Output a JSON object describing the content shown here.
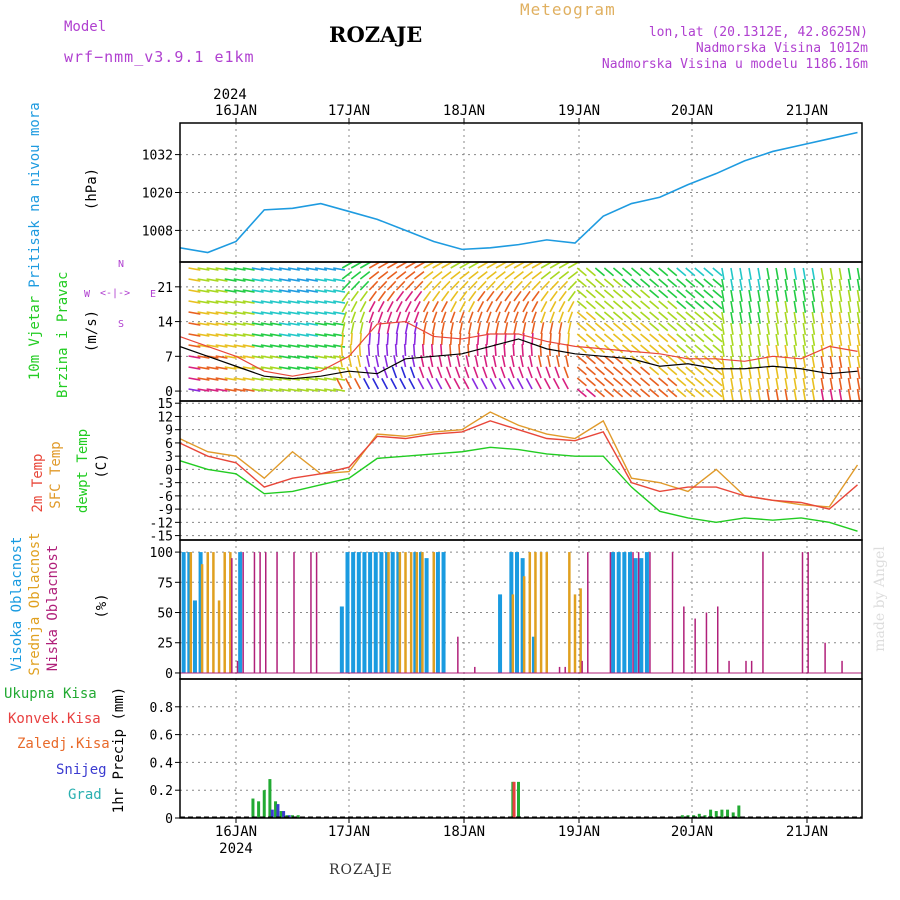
{
  "header": {
    "model_label": "Model",
    "model_name": "wrf−nmm_v3.9.1  e1km",
    "station": "ROZAJE",
    "product": "Meteogram",
    "lonlat": "lon,lat (20.1312E, 42.8625N)",
    "elevation": "Nadmorska Visina 1012m",
    "model_elevation": "Nadmorska Visina u modelu 1186.16m"
  },
  "footer": {
    "station": "ROZAJE",
    "credit": "made by Angel"
  },
  "colors": {
    "pressure": "#1e9be0",
    "temp2m": "#e8473a",
    "sfc": "#e09a2a",
    "dew": "#22cc22",
    "high_cloud": "#1a9be0",
    "mid_cloud": "#e0a020",
    "low_cloud": "#b0207a",
    "total_precip": "#22aa33",
    "conv_precip": "#e84040",
    "snow": "#3b3bd0"
  },
  "time_axis": {
    "year": "2024",
    "days": [
      "16JAN",
      "17JAN",
      "18JAN",
      "19JAN",
      "20JAN",
      "21JAN"
    ]
  },
  "chart_data": [
    {
      "type": "line",
      "panel": "pressure",
      "ylabel": "Pritisak na nivou mora",
      "unit": "(hPa)",
      "yticks": [
        1008,
        1020,
        1032
      ],
      "ylim": [
        998,
        1042
      ],
      "x_days": [
        0,
        0.25,
        0.5,
        0.75,
        1,
        1.25,
        1.5,
        1.75,
        2,
        2.25,
        2.5,
        2.75,
        3,
        3.25,
        3.5,
        3.75,
        4,
        4.25,
        4.5,
        4.75,
        5,
        5.25,
        5.5,
        5.75,
        6
      ],
      "series": [
        {
          "values": [
            1002.5,
            1001,
            1004.5,
            1014.5,
            1015,
            1016.5,
            1014,
            1011.5,
            1008,
            1004.5,
            1002,
            1002.5,
            1003.5,
            1005,
            1004,
            1012.5,
            1016.5,
            1018.5,
            1022.5,
            1026,
            1030,
            1033,
            1035,
            1037,
            1039
          ]
        }
      ]
    },
    {
      "type": "line",
      "panel": "wind",
      "ylabel": "10m Vjetar",
      "ylabel2": "Brzina i Pravac",
      "unit": "(m/s)",
      "compass": {
        "n": "N",
        "e": "E",
        "w": "W",
        "s": "S"
      },
      "yticks": [
        0,
        7,
        14,
        21
      ],
      "ylim": [
        -2,
        26
      ],
      "x_days": [
        0,
        0.25,
        0.5,
        0.75,
        1,
        1.25,
        1.5,
        1.75,
        2,
        2.25,
        2.5,
        2.75,
        3,
        3.25,
        3.5,
        3.75,
        4,
        4.25,
        4.5,
        4.75,
        5,
        5.25,
        5.5,
        5.75,
        6
      ],
      "series": [
        {
          "values": [
            9,
            7,
            5,
            3,
            2.5,
            3,
            4,
            3.5,
            6.5,
            7,
            7.5,
            9,
            10.5,
            8.5,
            7.5,
            7,
            6.5,
            5,
            5.5,
            4.5,
            4.5,
            5,
            4.5,
            3.5,
            4
          ]
        },
        {
          "values": [
            11,
            9,
            7,
            4,
            3,
            4,
            7,
            13.5,
            14,
            11,
            10.5,
            11.5,
            11.5,
            10,
            9,
            8.5,
            8,
            7.5,
            6.5,
            6.5,
            6,
            7,
            6.5,
            9,
            8
          ]
        }
      ]
    },
    {
      "type": "line",
      "panel": "temperature",
      "ylabel": "2m Temp",
      "ylabel2": "SFC Temp",
      "ylabel3": "dewpt Temp",
      "unit": "(C)",
      "yticks": [
        -15,
        -12,
        -9,
        -6,
        -3,
        0,
        3,
        6,
        9,
        12,
        15
      ],
      "ylim": [
        -16,
        15.5
      ],
      "x_days": [
        0,
        0.25,
        0.5,
        0.75,
        1,
        1.25,
        1.5,
        1.75,
        2,
        2.25,
        2.5,
        2.75,
        3,
        3.25,
        3.5,
        3.75,
        4,
        4.25,
        4.5,
        4.75,
        5,
        5.25,
        5.5,
        5.75,
        6
      ],
      "series": [
        {
          "name": "2m Temp",
          "values": [
            6,
            3,
            1.5,
            -4,
            -2,
            -1,
            0.5,
            7.5,
            7,
            8,
            8.5,
            11,
            9,
            7,
            6.5,
            8.5,
            -3,
            -5,
            -4,
            -4,
            -6,
            -7,
            -7.5,
            -9,
            -3.5
          ]
        },
        {
          "name": "SFC Temp",
          "values": [
            7,
            4,
            3,
            -2,
            4,
            -1,
            -0.5,
            8,
            7.5,
            8.5,
            9,
            13,
            10,
            8,
            7,
            11,
            -2,
            -3,
            -5,
            0,
            -6,
            -7,
            -8,
            -8.5,
            1
          ]
        },
        {
          "name": "dewpt Temp",
          "values": [
            2,
            0,
            -1,
            -5.5,
            -5,
            -3.5,
            -2,
            2.5,
            3,
            3.5,
            4,
            5,
            4.5,
            3.5,
            3,
            3,
            -4,
            -9.5,
            -11,
            -12,
            -11,
            -11.5,
            -11,
            -12,
            -14
          ]
        }
      ]
    },
    {
      "type": "bar",
      "panel": "clouds",
      "ylabel": "Visoka Oblacnost",
      "ylabel2": "Srednja Oblacnost",
      "ylabel3": "Niska Oblacnost",
      "unit": "(%)",
      "yticks": [
        0,
        25,
        50,
        75,
        100
      ],
      "ylim": [
        -5,
        110
      ],
      "series": [
        {
          "name": "Visoka Oblacnost",
          "x": [
            0.05,
            0.1,
            0.15,
            0.2,
            0.55,
            1.1,
            1.45,
            1.5,
            1.55,
            1.6,
            1.65,
            1.7,
            1.75,
            1.8,
            1.85,
            1.9,
            1.95,
            2.1,
            2.15,
            2.2,
            2.3,
            2.35,
            2.85,
            2.95,
            3.0,
            3.05,
            3.15,
            3.85,
            3.9,
            3.95,
            4.0,
            4.05,
            4.1,
            4.15
          ],
          "values": [
            100,
            100,
            60,
            100,
            100,
            0,
            55,
            100,
            100,
            100,
            100,
            100,
            100,
            100,
            100,
            100,
            100,
            100,
            100,
            95,
            100,
            100,
            65,
            100,
            100,
            95,
            30,
            100,
            100,
            100,
            100,
            95,
            95,
            100
          ]
        },
        {
          "name": "Srednja Oblacnost",
          "x": [
            0.1,
            0.2,
            0.25,
            0.3,
            0.35,
            0.4,
            0.45,
            1.85,
            1.95,
            2.0,
            2.05,
            2.1,
            2.15,
            2.25,
            2.95,
            3.05,
            3.1,
            3.15,
            3.2,
            3.25,
            3.45,
            3.5,
            3.55
          ],
          "values": [
            100,
            90,
            100,
            100,
            60,
            100,
            100,
            100,
            100,
            100,
            100,
            100,
            100,
            100,
            65,
            80,
            100,
            100,
            100,
            100,
            100,
            65,
            70
          ]
        },
        {
          "name": "Niska Oblacnost",
          "x": [
            0.45,
            0.5,
            0.55,
            0.65,
            0.7,
            0.75,
            0.85,
            1.0,
            1.15,
            1.2,
            2.45,
            2.6,
            3.35,
            3.4,
            3.55,
            3.6,
            3.8,
            4.0,
            4.05,
            4.15,
            4.35,
            4.45,
            4.55,
            4.65,
            4.75,
            4.85,
            5.0,
            5.05,
            5.15,
            5.5,
            5.55,
            5.7,
            5.85
          ],
          "values": [
            95,
            10,
            100,
            100,
            100,
            100,
            100,
            100,
            100,
            100,
            30,
            5,
            5,
            5,
            10,
            100,
            100,
            100,
            100,
            100,
            100,
            55,
            45,
            50,
            55,
            10,
            10,
            10,
            100,
            100,
            100,
            25,
            10
          ]
        }
      ]
    },
    {
      "type": "bar",
      "panel": "precipitation",
      "labels": [
        "Ukupna Kisa",
        "Konvek.Kisa",
        "Zaledj.Kisa",
        "Snijeg",
        "Grad"
      ],
      "ylabel": "1hr Precip (mm)",
      "yticks": [
        0,
        0.2,
        0.4,
        0.6,
        0.8
      ],
      "ylim": [
        0,
        1.0
      ],
      "series": [
        {
          "name": "Ukupna Kisa",
          "x": [
            -0.35,
            -0.3,
            -0.25,
            -0.2,
            -0.15,
            -0.1,
            -0.05,
            0.0,
            0.05,
            1.95,
            2.0,
            3.45,
            3.5,
            3.55,
            3.6,
            3.65,
            3.7,
            3.75,
            3.8,
            3.85,
            3.9,
            3.95,
            5.05,
            5.1,
            5.15,
            5.2,
            5.25,
            5.3,
            5.35
          ],
          "values": [
            0.14,
            0.12,
            0.2,
            0.28,
            0.12,
            0.05,
            0.02,
            0.02,
            0.02,
            0.26,
            0.26,
            0.02,
            0.02,
            0.02,
            0.03,
            0.02,
            0.06,
            0.05,
            0.06,
            0.06,
            0.04,
            0.09,
            0.11,
            0.18,
            0.07,
            0.03,
            0.04,
            0.08,
            0.03
          ]
        },
        {
          "name": "Konvek.Kisa",
          "x": [
            1.95
          ],
          "values": [
            0.26
          ]
        },
        {
          "name": "Snijeg",
          "x": [
            -0.2,
            -0.15,
            -0.1,
            -0.05
          ],
          "values": [
            0.06,
            0.1,
            0.05,
            0.02
          ]
        }
      ]
    }
  ]
}
